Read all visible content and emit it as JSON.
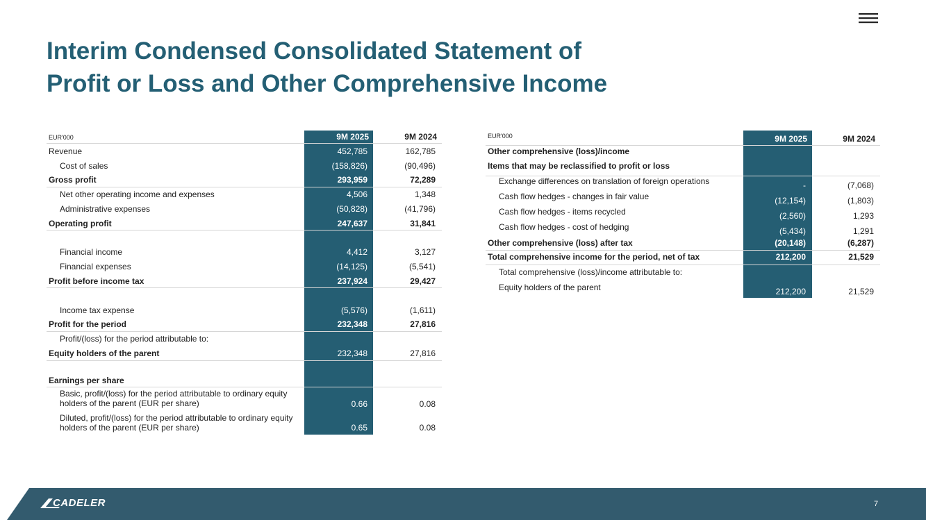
{
  "header": {
    "title": [
      "Interim Condensed Consolidated Statement of",
      "Profit or Loss and Other Comprehensive Income"
    ]
  },
  "left_table": {
    "unit": "EUR'000",
    "columns": [
      "9M 2025",
      "9M 2024"
    ],
    "rows": [
      [
        "Revenue",
        "452,785",
        "162,785"
      ],
      [
        "Cost of sales",
        "(158,826)",
        "(90,496)"
      ],
      [
        "Gross profit",
        "293,959",
        "72,289"
      ],
      [
        "Net other operating income and expenses",
        "4,506",
        "1,348"
      ],
      [
        "Administrative expenses",
        "(50,828)",
        "(41,796)"
      ],
      [
        "Operating profit",
        "247,637",
        "31,841"
      ],
      [
        "Financial income",
        "4,412",
        "3,127"
      ],
      [
        "Financial expenses",
        "(14,125)",
        "(5,541)"
      ],
      [
        "Profit before income tax",
        "237,924",
        "29,427"
      ],
      [
        "Income tax expense",
        "(5,576)",
        "(1,611)"
      ],
      [
        "Profit for the period",
        "232,348",
        "27,816"
      ],
      [
        "Profit/(loss) for the period attributable to:"
      ],
      [
        "Equity holders of the parent",
        "232,348",
        "27,816"
      ],
      [
        "Earnings per share"
      ],
      [
        "Basic, profit/(loss) for the period attributable to ordinary equity holders of the parent (EUR per share)",
        "0.66",
        "0.08"
      ],
      [
        "Diluted, profit/(loss) for the period attributable to ordinary equity holders of the parent (EUR per share)",
        "0.65",
        "0.08"
      ]
    ]
  },
  "right_table": {
    "unit": "EUR'000",
    "columns": [
      "9M 2025",
      "9M 2024"
    ],
    "rows": [
      [
        "Other comprehensive (loss)/income"
      ],
      [
        "Items that may be reclassified to profit or loss"
      ],
      [
        "Exchange differences on translation of foreign operations",
        "-",
        "(7,068)"
      ],
      [
        "Cash flow hedges - changes in fair value",
        "(12,154)",
        "(1,803)"
      ],
      [
        "Cash flow hedges - items recycled",
        "(2,560)",
        "1,293"
      ],
      [
        "Cash flow hedges - cost of hedging",
        "(5,434)",
        "1,291"
      ],
      [
        "Other comprehensive (loss)  after tax",
        "(20,148)",
        "(6,287)"
      ],
      [
        "Total comprehensive income for the period, net of tax",
        "212,200",
        "21,529"
      ],
      [
        "Total comprehensive (loss)/income attributable to:"
      ],
      [
        "Equity holders of the parent",
        "212,200",
        "21,529"
      ]
    ]
  },
  "footer": {
    "logo": "CADELER",
    "page": "7"
  }
}
